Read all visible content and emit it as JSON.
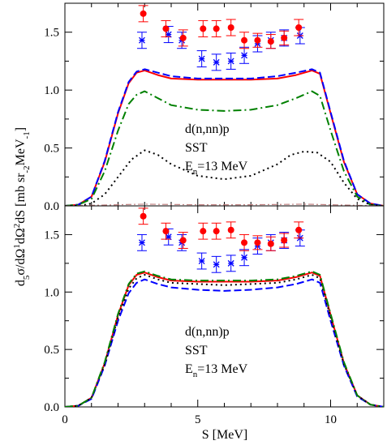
{
  "figure": {
    "xlabel": "S [MeV]",
    "ylabel": "d5σ/dΩ1dΩ2dS [mb sr-2MeV-1]"
  },
  "chart_data": [
    {
      "type": "line",
      "panel": "top",
      "xlim": [
        0,
        12
      ],
      "ylim": [
        0,
        1.75
      ],
      "xticks": [
        "0",
        "5",
        "10"
      ],
      "yticks": [
        "0.0",
        "0.5",
        "1.0",
        "1.5"
      ],
      "grid": false,
      "annotation": [
        "d(n,nn)p",
        "SST",
        "E",
        "n",
        "=13 MeV"
      ],
      "series": [
        {
          "style": "solid",
          "color": "#ff0000",
          "x": [
            0,
            0.5,
            1.0,
            1.5,
            2.0,
            2.4,
            2.7,
            3.0,
            3.5,
            4.0,
            5.0,
            6.0,
            7.0,
            8.0,
            8.7,
            9.3,
            9.6,
            10.0,
            10.5,
            11.0,
            11.5,
            12.0
          ],
          "y": [
            0,
            0.01,
            0.08,
            0.38,
            0.8,
            1.06,
            1.15,
            1.17,
            1.13,
            1.1,
            1.09,
            1.09,
            1.09,
            1.1,
            1.13,
            1.17,
            1.14,
            0.8,
            0.38,
            0.1,
            0.02,
            0
          ]
        },
        {
          "style": "dashed",
          "color": "#0000ff",
          "x": [
            0,
            0.5,
            1.0,
            1.5,
            2.0,
            2.4,
            2.7,
            3.0,
            3.5,
            4.0,
            5.0,
            6.0,
            7.0,
            8.0,
            8.7,
            9.3,
            9.6,
            10.0,
            10.5,
            11.0,
            11.5,
            12.0
          ],
          "y": [
            0,
            0.01,
            0.08,
            0.39,
            0.81,
            1.07,
            1.16,
            1.18,
            1.15,
            1.12,
            1.1,
            1.1,
            1.1,
            1.12,
            1.15,
            1.18,
            1.15,
            0.81,
            0.39,
            0.1,
            0.02,
            0
          ]
        },
        {
          "style": "dash-dot",
          "color": "#008000",
          "x": [
            0,
            0.5,
            1.0,
            1.5,
            2.0,
            2.4,
            2.7,
            3.0,
            3.5,
            4.0,
            5.0,
            6.0,
            7.0,
            8.0,
            8.7,
            9.3,
            9.6,
            10.0,
            10.5,
            11.0,
            11.5,
            12.0
          ],
          "y": [
            0,
            0.01,
            0.06,
            0.3,
            0.65,
            0.88,
            0.96,
            0.99,
            0.93,
            0.87,
            0.83,
            0.82,
            0.83,
            0.87,
            0.93,
            0.99,
            0.95,
            0.65,
            0.3,
            0.08,
            0.01,
            0
          ]
        },
        {
          "style": "dotted",
          "color": "#000000",
          "x": [
            0,
            0.5,
            1.0,
            1.5,
            2.0,
            2.5,
            3.0,
            3.5,
            4.0,
            5.0,
            6.0,
            7.0,
            8.0,
            8.5,
            9.0,
            9.5,
            10.0,
            10.5,
            11.0,
            11.5,
            12.0
          ],
          "y": [
            0,
            0.0,
            0.02,
            0.1,
            0.25,
            0.4,
            0.48,
            0.44,
            0.36,
            0.26,
            0.23,
            0.26,
            0.36,
            0.44,
            0.47,
            0.46,
            0.38,
            0.2,
            0.06,
            0.01,
            0
          ]
        },
        {
          "style": "dash-dot-thin",
          "color": "#c08080",
          "x": [
            0,
            1,
            2,
            3,
            4,
            5,
            6,
            7,
            8,
            9,
            10,
            11,
            12
          ],
          "y": [
            0,
            0.005,
            0.01,
            0.015,
            0.012,
            0.01,
            0.01,
            0.01,
            0.012,
            0.015,
            0.01,
            0.005,
            0
          ]
        }
      ],
      "data_circles": {
        "color": "#ff0000",
        "x": [
          2.95,
          3.8,
          4.45,
          5.2,
          5.7,
          6.25,
          6.75,
          7.25,
          7.75,
          8.25,
          8.8
        ],
        "y": [
          1.66,
          1.53,
          1.45,
          1.53,
          1.53,
          1.54,
          1.43,
          1.43,
          1.42,
          1.45,
          1.54
        ],
        "err": [
          0.07,
          0.07,
          0.07,
          0.07,
          0.07,
          0.07,
          0.07,
          0.06,
          0.06,
          0.06,
          0.07
        ]
      },
      "data_stars": {
        "color": "#0000ff",
        "x": [
          2.9,
          3.9,
          4.4,
          5.15,
          5.7,
          6.25,
          6.75,
          7.25,
          7.75,
          8.25,
          8.85
        ],
        "y": [
          1.43,
          1.48,
          1.43,
          1.27,
          1.24,
          1.25,
          1.3,
          1.4,
          1.43,
          1.45,
          1.47
        ],
        "err": [
          0.07,
          0.07,
          0.07,
          0.07,
          0.07,
          0.07,
          0.07,
          0.07,
          0.07,
          0.07,
          0.07
        ]
      }
    },
    {
      "type": "line",
      "panel": "bottom",
      "xlim": [
        0,
        12
      ],
      "ylim": [
        0,
        1.75
      ],
      "xticks": [
        "0",
        "5",
        "10"
      ],
      "yticks": [
        "0.0",
        "0.5",
        "1.0",
        "1.5"
      ],
      "grid": false,
      "annotation": [
        "d(n,nn)p",
        "SST",
        "E",
        "n",
        "=13 MeV"
      ],
      "series": [
        {
          "style": "solid",
          "color": "#ff0000",
          "x": [
            0,
            0.5,
            1.0,
            1.5,
            2.0,
            2.4,
            2.7,
            3.0,
            3.5,
            4.0,
            5.0,
            6.0,
            7.0,
            8.0,
            8.7,
            9.3,
            9.6,
            10.0,
            10.5,
            11.0,
            11.5,
            12.0
          ],
          "y": [
            0,
            0.01,
            0.08,
            0.38,
            0.8,
            1.06,
            1.15,
            1.17,
            1.13,
            1.1,
            1.09,
            1.09,
            1.09,
            1.1,
            1.13,
            1.17,
            1.14,
            0.8,
            0.38,
            0.1,
            0.02,
            0
          ]
        },
        {
          "style": "dashed",
          "color": "#0000ff",
          "x": [
            0,
            0.5,
            1.0,
            1.5,
            2.0,
            2.4,
            2.7,
            3.0,
            3.5,
            4.0,
            5.0,
            6.0,
            7.0,
            8.0,
            8.7,
            9.3,
            9.6,
            10.0,
            10.5,
            11.0,
            11.5,
            12.0
          ],
          "y": [
            0,
            0.01,
            0.07,
            0.36,
            0.75,
            0.99,
            1.08,
            1.11,
            1.07,
            1.04,
            1.02,
            1.01,
            1.02,
            1.04,
            1.07,
            1.11,
            1.08,
            0.75,
            0.36,
            0.09,
            0.02,
            0
          ]
        },
        {
          "style": "dotted",
          "color": "#000000",
          "x": [
            0,
            0.5,
            1.0,
            1.5,
            2.0,
            2.4,
            2.7,
            3.0,
            3.5,
            4.0,
            5.0,
            6.0,
            7.0,
            8.0,
            8.7,
            9.3,
            9.6,
            10.0,
            10.5,
            11.0,
            11.5,
            12.0
          ],
          "y": [
            0,
            0.01,
            0.08,
            0.37,
            0.78,
            1.03,
            1.12,
            1.15,
            1.11,
            1.08,
            1.07,
            1.06,
            1.07,
            1.08,
            1.11,
            1.15,
            1.12,
            0.78,
            0.37,
            0.1,
            0.02,
            0
          ]
        },
        {
          "style": "dash-dot",
          "color": "#008000",
          "x": [
            0,
            0.5,
            1.0,
            1.5,
            2.0,
            2.4,
            2.7,
            3.0,
            3.5,
            4.0,
            5.0,
            6.0,
            7.0,
            8.0,
            8.7,
            9.3,
            9.6,
            10.0,
            10.5,
            11.0,
            11.5,
            12.0
          ],
          "y": [
            0,
            0.01,
            0.08,
            0.39,
            0.81,
            1.07,
            1.16,
            1.18,
            1.14,
            1.11,
            1.1,
            1.1,
            1.1,
            1.11,
            1.14,
            1.18,
            1.15,
            0.81,
            0.39,
            0.1,
            0.02,
            0
          ]
        }
      ],
      "data_circles": {
        "color": "#ff0000",
        "x": [
          2.95,
          3.8,
          4.45,
          5.2,
          5.7,
          6.25,
          6.75,
          7.25,
          7.75,
          8.25,
          8.8
        ],
        "y": [
          1.66,
          1.53,
          1.45,
          1.53,
          1.53,
          1.54,
          1.43,
          1.43,
          1.42,
          1.45,
          1.54
        ],
        "err": [
          0.07,
          0.07,
          0.07,
          0.07,
          0.07,
          0.07,
          0.07,
          0.06,
          0.06,
          0.06,
          0.07
        ]
      },
      "data_stars": {
        "color": "#0000ff",
        "x": [
          2.9,
          3.9,
          4.4,
          5.15,
          5.7,
          6.25,
          6.75,
          7.25,
          7.75,
          8.25,
          8.85
        ],
        "y": [
          1.43,
          1.48,
          1.43,
          1.27,
          1.24,
          1.25,
          1.3,
          1.4,
          1.43,
          1.45,
          1.47
        ],
        "err": [
          0.07,
          0.07,
          0.07,
          0.07,
          0.07,
          0.07,
          0.07,
          0.07,
          0.07,
          0.07,
          0.07
        ]
      }
    }
  ]
}
